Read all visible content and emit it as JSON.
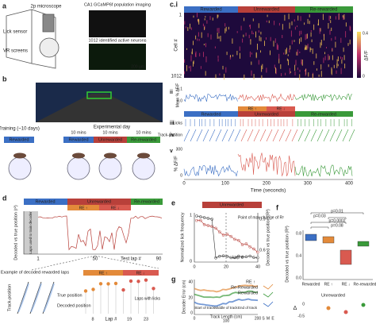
{
  "panel_a": {
    "label": "a",
    "microscope": "2p microscope",
    "imaging": "CA1 GCaMP6f population imaging",
    "lick_sensor": "Lick sensor",
    "vr": "VR screens",
    "neurons": "1012 identified active neurons",
    "scale": "200 µm"
  },
  "panel_b": {
    "label": "b",
    "training": "Training (~10 days)",
    "experimental_day": "Experimental day",
    "durations": [
      "10 mins",
      "10 mins",
      "10 mins"
    ],
    "conditions": [
      "Rewarded",
      "Rewarded",
      "Unrewarded",
      "Re-rewarded"
    ]
  },
  "panel_c": {
    "label": "c.i",
    "epochs": [
      "Rewarded",
      "Unrewarded",
      "Re-rewarded"
    ],
    "cell_ticks": [
      "1",
      "1012"
    ],
    "cell_axis": "Cell #",
    "colorbar_ticks": [
      "0.4",
      "0"
    ],
    "colorbar_label": "ΔF/F",
    "ii_label": "ii",
    "ii_axis": "Mean % ΔF/F",
    "ii_ticks": [
      "0.1",
      "0.0"
    ],
    "iii_label": "iii",
    "iv_label": "iv",
    "licks": "Licks",
    "track": "Track-position",
    "re_up": "RE ↑",
    "re_down": "RE ↓",
    "v_label": "v",
    "v_axis": "% ΔF/F",
    "v_ticks": [
      "300",
      "0"
    ],
    "time_ticks": [
      "0",
      "100",
      "200",
      "300",
      "400"
    ],
    "time_axis": "Time (seconds)"
  },
  "panel_d": {
    "label": "d",
    "epochs": [
      "Rewarded",
      "Unrewarded",
      "Re-rewarded"
    ],
    "re_up": "RE ↑",
    "re_down": "RE ↓",
    "y_axis": "Decoded vs true position (r²)",
    "train_laps": "Laps used to train decoder",
    "lap_ticks": [
      "1",
      "50",
      "90"
    ],
    "x_axis": "Test lap #",
    "inset_title": "Example of decoded rewarded laps",
    "true_pos": "True position",
    "decoded_pos": "Decoded position",
    "track": "Track-position",
    "inset2_re_up": "RE ↑",
    "inset2_re_down": "RE ↓",
    "inset2_x": "Lap #",
    "inset2_ticks": [
      "8",
      "19",
      "23"
    ],
    "licks_note": "Laps with licks"
  },
  "panel_e": {
    "label": "e",
    "epoch": "Unrewarded",
    "annotation": "Point of max change of R²",
    "left_axis": "Normalized lick frequency",
    "right_axis": "Decoded vs true position (R²)",
    "left_ticks": [
      "1",
      "0"
    ],
    "right_ticks": [
      "0.9",
      "0.6"
    ],
    "x_ticks": [
      "0",
      "20",
      "40"
    ],
    "x_axis": "Lap #"
  },
  "panel_f": {
    "label": "f",
    "p_values": [
      "p=0.01",
      "p=0.0002",
      "p=0.03",
      "p=0.08"
    ],
    "y_axis": "Decoded vs true position (R²)",
    "y_ticks": [
      "0.8",
      "0.4",
      "0.0"
    ],
    "categories": [
      "Rewarded",
      "RE ↑",
      "RE ↓",
      "Re-rewarded"
    ],
    "sub_title": "Unrewarded",
    "delta": "Δ",
    "delta_ticks": [
      "0",
      "-0.5"
    ]
  },
  "panel_g": {
    "label": "g",
    "legend": [
      "RE ↑",
      "Re-Rewarded",
      "Rewarded"
    ],
    "y_axis": "Decoder Error (cm)",
    "y_ticks": [
      "40",
      "20",
      "0"
    ],
    "regions": [
      "Start of track",
      "Middle of track",
      "End of track"
    ],
    "x_axis": "Track Length (cm)",
    "x_ticks": [
      "0",
      "100",
      "200"
    ],
    "sme": [
      "S",
      "M",
      "E"
    ]
  }
}
